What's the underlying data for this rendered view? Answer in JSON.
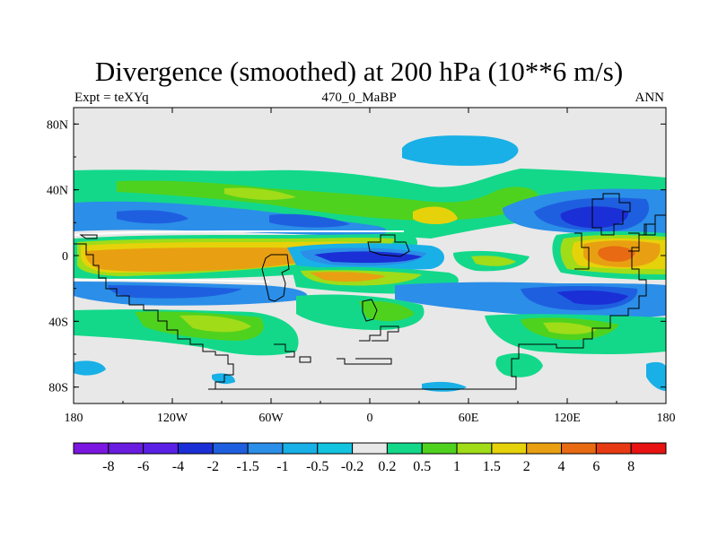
{
  "title": "Divergence (smoothed) at 200 hPa (10**6 m/s)",
  "subtitle_left": "Expt = teXYq",
  "subtitle_center": "470_0_MaBP",
  "subtitle_right": "ANN",
  "map": {
    "projection": "cylindrical-equidistant",
    "lon_range": [
      -180,
      180
    ],
    "lat_range": [
      -90,
      90
    ],
    "background_color": "#e8e8e8",
    "lon_ticks": [
      {
        "value": -180,
        "label": "180"
      },
      {
        "value": -120,
        "label": "120W"
      },
      {
        "value": -60,
        "label": "60W"
      },
      {
        "value": 0,
        "label": "0"
      },
      {
        "value": 60,
        "label": "60E"
      },
      {
        "value": 120,
        "label": "120E"
      },
      {
        "value": 180,
        "label": "180"
      }
    ],
    "lat_ticks": [
      {
        "value": 80,
        "label": "80N"
      },
      {
        "value": 40,
        "label": "40N"
      },
      {
        "value": 0,
        "label": "0"
      },
      {
        "value": -40,
        "label": "40S"
      },
      {
        "value": -80,
        "label": "80S"
      }
    ]
  },
  "colorbar": {
    "colors": [
      "#7b17e0",
      "#6a1ce0",
      "#5a20e6",
      "#1b2fd6",
      "#1e5fe0",
      "#2b8ee8",
      "#18b0e6",
      "#12c4e0",
      "#e8e8e8",
      "#13d88a",
      "#4fd21e",
      "#a0dc18",
      "#e6d20a",
      "#e8a012",
      "#e86a12",
      "#e83a12",
      "#e81212"
    ],
    "labels": [
      "-8",
      "-6",
      "-4",
      "-2",
      "-1.5",
      "-1",
      "-0.5",
      "-0.2",
      "0.2",
      "0.5",
      "1",
      "1.5",
      "2",
      "4",
      "6",
      "8"
    ]
  },
  "chart_data": {
    "type": "heatmap",
    "variable": "Divergence (smoothed) at 200 hPa",
    "units": "10**6 m/s",
    "levels": [
      -8,
      -6,
      -4,
      -2,
      -1.5,
      -1,
      -0.5,
      -0.2,
      0.2,
      0.5,
      1,
      1.5,
      2,
      4,
      6,
      8
    ],
    "features": [
      {
        "region": "equatorial band 180-40E, 0-10N",
        "value_range": [
          2,
          4
        ]
      },
      {
        "region": "equatorial west Pacific 130-160E, 0-10S",
        "value_range": [
          4,
          6
        ]
      },
      {
        "region": "equatorial 20-70E, 0-5N",
        "value_range": [
          -4,
          -2
        ]
      },
      {
        "region": "north Pacific 120-150E, 25-35N",
        "value_range": [
          -4,
          -2
        ]
      },
      {
        "region": "south Pacific 120-150E, 20-30S",
        "value_range": [
          -4,
          -2
        ]
      },
      {
        "region": "subtropical north 40N band",
        "value_range": [
          0.5,
          1.5
        ]
      },
      {
        "region": "southern midlatitude 45-60S band",
        "value_range": [
          0.2,
          1.5
        ]
      }
    ]
  }
}
